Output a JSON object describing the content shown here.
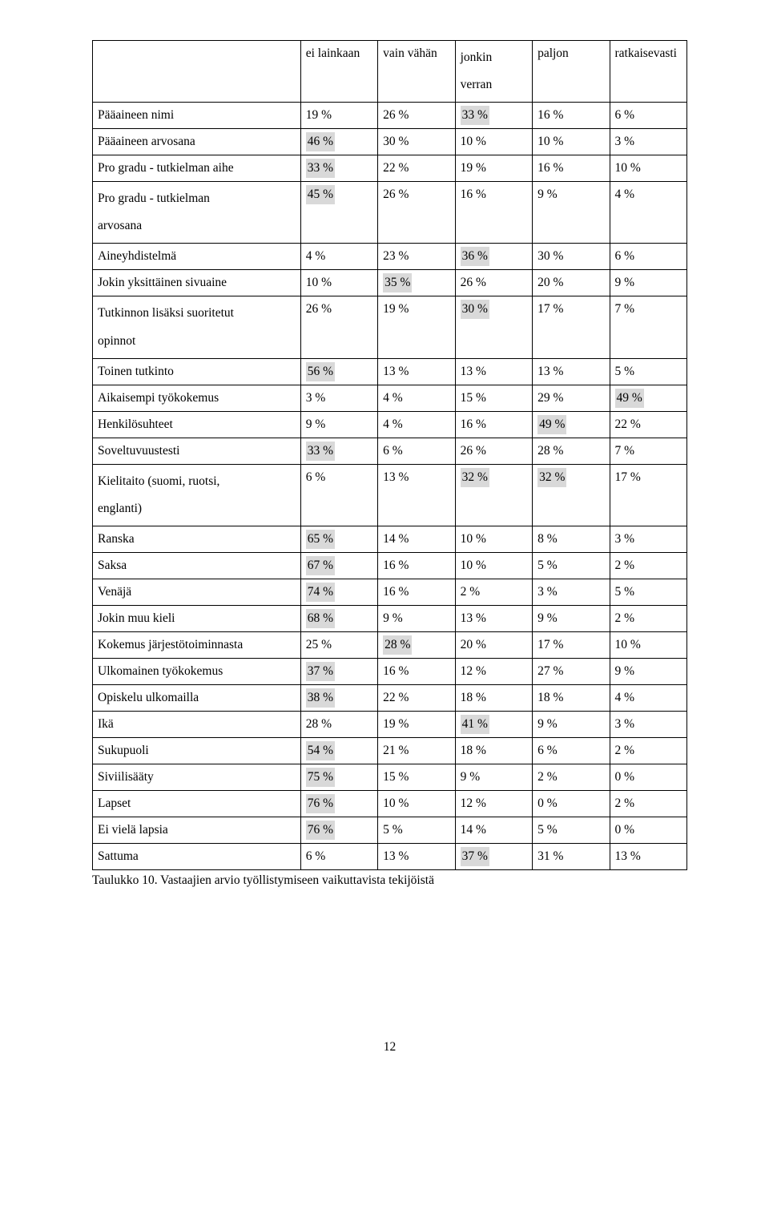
{
  "headers": {
    "c1": "ei lainkaan",
    "c2": "vain vähän",
    "c3_line1": "jonkin",
    "c3_line2": "verran",
    "c4": "paljon",
    "c5": "ratkaisevasti"
  },
  "rows": [
    {
      "label": "Pääaineen nimi",
      "c": [
        {
          "v": "19 %"
        },
        {
          "v": "26 %"
        },
        {
          "v": "33 %",
          "hl": true
        },
        {
          "v": "16 %"
        },
        {
          "v": "6 %"
        }
      ]
    },
    {
      "label": "Pääaineen arvosana",
      "c": [
        {
          "v": "46 %",
          "hl": true
        },
        {
          "v": "30 %"
        },
        {
          "v": "10 %"
        },
        {
          "v": "10 %"
        },
        {
          "v": "3 %"
        }
      ]
    },
    {
      "label": "Pro gradu - tutkielman aihe",
      "c": [
        {
          "v": "33 %",
          "hl": true
        },
        {
          "v": "22 %"
        },
        {
          "v": "19 %"
        },
        {
          "v": "16 %"
        },
        {
          "v": "10 %"
        }
      ]
    },
    {
      "label": "Pro gradu - tutkielman arvosana",
      "multi": true,
      "labelLines": [
        "Pro gradu - tutkielman",
        "arvosana"
      ],
      "c": [
        {
          "v": "45 %",
          "hl": true
        },
        {
          "v": "26 %"
        },
        {
          "v": "16 %"
        },
        {
          "v": "9 %"
        },
        {
          "v": "4 %"
        }
      ]
    },
    {
      "label": "Aineyhdistelmä",
      "c": [
        {
          "v": "4 %"
        },
        {
          "v": "23 %"
        },
        {
          "v": "36 %",
          "hl": true
        },
        {
          "v": "30 %"
        },
        {
          "v": "6 %"
        }
      ]
    },
    {
      "label": "Jokin yksittäinen sivuaine",
      "c": [
        {
          "v": "10 %"
        },
        {
          "v": "35 %",
          "hl": true
        },
        {
          "v": "26 %"
        },
        {
          "v": "20 %"
        },
        {
          "v": "9 %"
        }
      ]
    },
    {
      "label": "Tutkinnon lisäksi suoritetut opinnot",
      "multi": true,
      "labelLines": [
        "Tutkinnon lisäksi suoritetut",
        "opinnot"
      ],
      "c": [
        {
          "v": "26 %"
        },
        {
          "v": "19 %"
        },
        {
          "v": "30 %",
          "hl": true
        },
        {
          "v": "17 %"
        },
        {
          "v": "7 %"
        }
      ]
    },
    {
      "label": "Toinen tutkinto",
      "c": [
        {
          "v": "56 %",
          "hl": true
        },
        {
          "v": "13 %"
        },
        {
          "v": "13 %"
        },
        {
          "v": "13 %"
        },
        {
          "v": "5 %"
        }
      ]
    },
    {
      "label": "Aikaisempi työkokemus",
      "c": [
        {
          "v": "3 %"
        },
        {
          "v": "4 %"
        },
        {
          "v": "15 %"
        },
        {
          "v": "29 %"
        },
        {
          "v": "49 %",
          "hl": true
        }
      ]
    },
    {
      "label": "Henkilösuhteet",
      "c": [
        {
          "v": "9 %"
        },
        {
          "v": "4 %"
        },
        {
          "v": "16 %"
        },
        {
          "v": "49 %",
          "hl": true
        },
        {
          "v": "22 %"
        }
      ]
    },
    {
      "label": "Soveltuvuustesti",
      "c": [
        {
          "v": "33 %",
          "hl": true
        },
        {
          "v": "6 %"
        },
        {
          "v": "26 %"
        },
        {
          "v": "28 %"
        },
        {
          "v": "7 %"
        }
      ]
    },
    {
      "label": "Kielitaito (suomi, ruotsi, englanti)",
      "multi": true,
      "labelLines": [
        "Kielitaito (suomi, ruotsi,",
        "englanti)"
      ],
      "c": [
        {
          "v": "6 %"
        },
        {
          "v": "13 %"
        },
        {
          "v": "32 %",
          "hl": true
        },
        {
          "v": "32 %",
          "hl": true
        },
        {
          "v": "17 %"
        }
      ]
    },
    {
      "label": "Ranska",
      "c": [
        {
          "v": "65 %",
          "hl": true
        },
        {
          "v": "14 %"
        },
        {
          "v": "10 %"
        },
        {
          "v": "8 %"
        },
        {
          "v": "3 %"
        }
      ]
    },
    {
      "label": "Saksa",
      "c": [
        {
          "v": "67 %",
          "hl": true
        },
        {
          "v": "16 %"
        },
        {
          "v": "10 %"
        },
        {
          "v": "5 %"
        },
        {
          "v": "2 %"
        }
      ]
    },
    {
      "label": "Venäjä",
      "c": [
        {
          "v": "74 %",
          "hl": true
        },
        {
          "v": "16 %"
        },
        {
          "v": "2 %"
        },
        {
          "v": "3 %"
        },
        {
          "v": "5 %"
        }
      ]
    },
    {
      "label": "Jokin muu kieli",
      "c": [
        {
          "v": "68 %",
          "hl": true
        },
        {
          "v": "9 %"
        },
        {
          "v": "13 %"
        },
        {
          "v": "9 %"
        },
        {
          "v": "2 %"
        }
      ]
    },
    {
      "label": "Kokemus järjestötoiminnasta",
      "c": [
        {
          "v": "25 %"
        },
        {
          "v": "28 %",
          "hl": true
        },
        {
          "v": "20 %"
        },
        {
          "v": "17 %"
        },
        {
          "v": "10 %"
        }
      ]
    },
    {
      "label": "Ulkomainen työkokemus",
      "c": [
        {
          "v": "37 %",
          "hl": true
        },
        {
          "v": "16 %"
        },
        {
          "v": "12 %"
        },
        {
          "v": "27 %"
        },
        {
          "v": "9 %"
        }
      ]
    },
    {
      "label": "Opiskelu ulkomailla",
      "c": [
        {
          "v": "38 %",
          "hl": true
        },
        {
          "v": "22 %"
        },
        {
          "v": "18 %"
        },
        {
          "v": "18 %"
        },
        {
          "v": "4 %"
        }
      ]
    },
    {
      "label": "Ikä",
      "c": [
        {
          "v": "28 %"
        },
        {
          "v": "19 %"
        },
        {
          "v": "41 %",
          "hl": true
        },
        {
          "v": "9 %"
        },
        {
          "v": "3 %"
        }
      ]
    },
    {
      "label": "Sukupuoli",
      "c": [
        {
          "v": "54 %",
          "hl": true
        },
        {
          "v": "21 %"
        },
        {
          "v": "18 %"
        },
        {
          "v": "6 %"
        },
        {
          "v": "2 %"
        }
      ]
    },
    {
      "label": "Siviilisääty",
      "c": [
        {
          "v": "75 %",
          "hl": true
        },
        {
          "v": "15 %"
        },
        {
          "v": "9 %"
        },
        {
          "v": "2 %"
        },
        {
          "v": "0 %"
        }
      ]
    },
    {
      "label": "Lapset",
      "c": [
        {
          "v": "76 %",
          "hl": true
        },
        {
          "v": "10 %"
        },
        {
          "v": "12 %"
        },
        {
          "v": "0 %"
        },
        {
          "v": "2 %"
        }
      ]
    },
    {
      "label": "Ei vielä lapsia",
      "c": [
        {
          "v": "76 %",
          "hl": true
        },
        {
          "v": "5 %"
        },
        {
          "v": "14 %"
        },
        {
          "v": "5 %"
        },
        {
          "v": "0 %"
        }
      ]
    },
    {
      "label": "Sattuma",
      "c": [
        {
          "v": "6 %"
        },
        {
          "v": "13 %"
        },
        {
          "v": "37 %",
          "hl": true
        },
        {
          "v": "31 %"
        },
        {
          "v": "13 %"
        }
      ]
    }
  ],
  "caption": "Taulukko 10. Vastaajien arvio työllistymiseen vaikuttavista tekijöistä",
  "pagenum": "12",
  "style": {
    "highlight_bg": "#d9d9d9",
    "border_color": "#000000",
    "font_family": "Times New Roman"
  }
}
